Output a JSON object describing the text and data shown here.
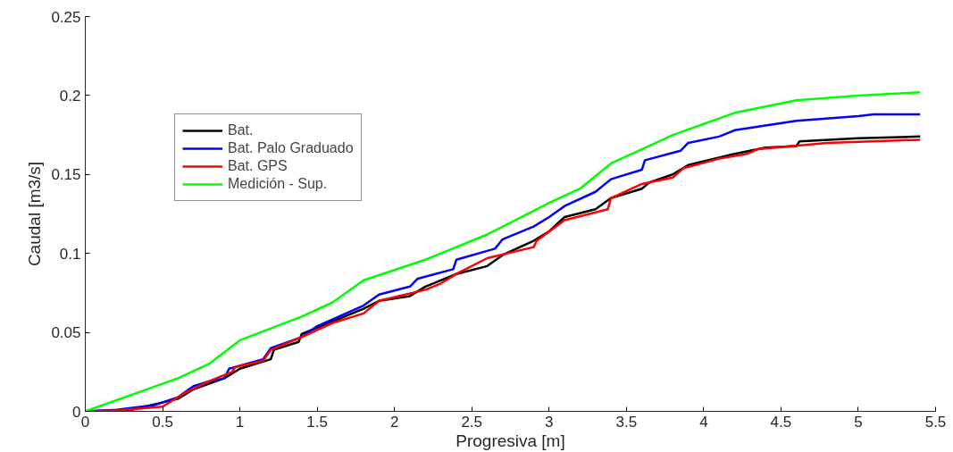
{
  "chart_data": {
    "type": "line",
    "xlabel": "Progresiva [m]",
    "ylabel": "Caudal [m3/s]",
    "xlim": [
      0,
      5.5
    ],
    "xticks": [
      0,
      0.5,
      1,
      1.5,
      2,
      2.5,
      3,
      3.5,
      4,
      4.5,
      5,
      5.5
    ],
    "ylim": [
      0,
      0.25
    ],
    "yticks": [
      0,
      0.05,
      0.1,
      0.15,
      0.2,
      0.25
    ],
    "grid": false,
    "legend": "top left",
    "marker": "none",
    "line_style": "solid",
    "series": [
      {
        "name": "Bat.",
        "color": "#000000",
        "x": [
          0,
          0.3,
          0.6,
          0.7,
          0.9,
          1,
          1.2,
          1.22,
          1.38,
          1.4,
          1.6,
          1.8,
          1.9,
          2.1,
          2.2,
          2.4,
          2.6,
          2.7,
          2.9,
          3,
          3.1,
          3.3,
          3.4,
          3.6,
          3.65,
          3.8,
          3.9,
          4.2,
          4.4,
          4.6,
          4.62,
          5,
          5.4
        ],
        "values": [
          0,
          0.001,
          0.008,
          0.014,
          0.021,
          0.027,
          0.033,
          0.039,
          0.044,
          0.049,
          0.057,
          0.065,
          0.07,
          0.073,
          0.079,
          0.087,
          0.092,
          0.099,
          0.108,
          0.114,
          0.123,
          0.128,
          0.135,
          0.141,
          0.145,
          0.15,
          0.156,
          0.163,
          0.167,
          0.168,
          0.171,
          0.173,
          0.174
        ]
      },
      {
        "name": "Bat. Palo Graduado",
        "color": "#0000ff",
        "x": [
          0,
          0.2,
          0.45,
          0.6,
          0.7,
          0.8,
          0.9,
          0.93,
          1.15,
          1.2,
          1.4,
          1.5,
          1.8,
          1.9,
          2.1,
          2.15,
          2.38,
          2.4,
          2.65,
          2.7,
          2.9,
          3,
          3.1,
          3.3,
          3.4,
          3.6,
          3.62,
          3.85,
          3.9,
          4.1,
          4.2,
          4.4,
          4.6,
          5,
          5.1,
          5.4
        ],
        "values": [
          0,
          0.001,
          0.004,
          0.009,
          0.016,
          0.019,
          0.021,
          0.027,
          0.033,
          0.04,
          0.047,
          0.054,
          0.067,
          0.074,
          0.079,
          0.084,
          0.09,
          0.096,
          0.103,
          0.109,
          0.117,
          0.123,
          0.13,
          0.139,
          0.147,
          0.153,
          0.159,
          0.165,
          0.17,
          0.174,
          0.178,
          0.181,
          0.184,
          0.187,
          0.188,
          0.188
        ]
      },
      {
        "name": "Bat. GPS",
        "color": "#ff0000",
        "x": [
          0,
          0.2,
          0.5,
          0.65,
          0.8,
          0.95,
          0.97,
          1.15,
          1.2,
          1.4,
          1.6,
          1.8,
          1.9,
          2.2,
          2.3,
          2.4,
          2.6,
          2.9,
          2.92,
          3.1,
          3.38,
          3.4,
          3.6,
          3.8,
          3.87,
          4.1,
          4.28,
          4.35,
          4.8,
          5.4
        ],
        "values": [
          0,
          0.0005,
          0.003,
          0.012,
          0.019,
          0.025,
          0.028,
          0.032,
          0.039,
          0.047,
          0.056,
          0.062,
          0.07,
          0.077,
          0.081,
          0.087,
          0.097,
          0.104,
          0.108,
          0.121,
          0.128,
          0.135,
          0.144,
          0.148,
          0.154,
          0.16,
          0.163,
          0.166,
          0.17,
          0.172
        ]
      },
      {
        "name": "Medición - Sup.",
        "color": "#00ff00",
        "x": [
          0,
          0.6,
          0.8,
          1,
          1.4,
          1.6,
          1.8,
          2.2,
          2.6,
          2.8,
          3,
          3.2,
          3.4,
          3.6,
          3.8,
          4,
          4.2,
          4.6,
          5,
          5.4
        ],
        "values": [
          0,
          0.021,
          0.03,
          0.045,
          0.06,
          0.069,
          0.083,
          0.096,
          0.112,
          0.122,
          0.132,
          0.141,
          0.157,
          0.166,
          0.175,
          0.182,
          0.189,
          0.197,
          0.2,
          0.202
        ]
      }
    ]
  }
}
